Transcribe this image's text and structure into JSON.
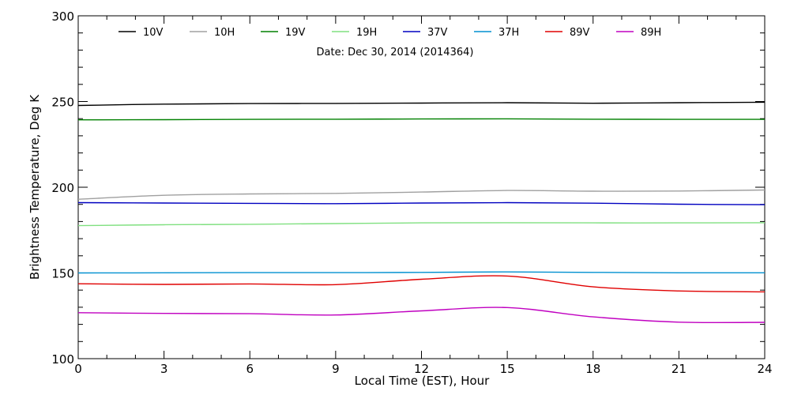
{
  "chart_data": {
    "type": "line",
    "title": "",
    "subtitle": "Date: Dec 30, 2014 (2014364)",
    "xlabel": "Local Time (EST), Hour",
    "ylabel": "Brightness Temperature, Deg K",
    "xlim": [
      0,
      24
    ],
    "ylim": [
      100,
      300
    ],
    "x_ticks": [
      0,
      3,
      6,
      9,
      12,
      15,
      18,
      21,
      24
    ],
    "y_ticks": [
      100,
      150,
      200,
      250,
      300
    ],
    "grid": false,
    "legend_position": "top",
    "series": [
      {
        "name": "10V",
        "color": "#000000",
        "x": [
          0,
          3,
          6,
          9,
          12,
          15,
          18,
          21,
          24
        ],
        "y": [
          247.7,
          248.5,
          248.8,
          248.9,
          249.1,
          249.3,
          249.0,
          249.3,
          249.6
        ]
      },
      {
        "name": "10H",
        "color": "#a0a0a0",
        "x": [
          0,
          3,
          6,
          9,
          12,
          15,
          18,
          21,
          24
        ],
        "y": [
          193.0,
          195.3,
          196.1,
          196.4,
          197.2,
          198.1,
          197.7,
          197.8,
          198.4
        ]
      },
      {
        "name": "19V",
        "color": "#008000",
        "x": [
          0,
          3,
          6,
          9,
          12,
          15,
          18,
          21,
          24
        ],
        "y": [
          239.3,
          239.4,
          239.6,
          239.7,
          239.8,
          239.9,
          239.7,
          239.6,
          239.6
        ]
      },
      {
        "name": "19H",
        "color": "#80e080",
        "x": [
          0,
          3,
          6,
          9,
          12,
          15,
          18,
          21,
          24
        ],
        "y": [
          177.6,
          178.1,
          178.4,
          178.8,
          179.2,
          179.3,
          179.2,
          179.2,
          179.3
        ]
      },
      {
        "name": "37V",
        "color": "#0000c0",
        "x": [
          0,
          3,
          6,
          9,
          12,
          15,
          18,
          21,
          24
        ],
        "y": [
          191.0,
          190.8,
          190.6,
          190.4,
          190.8,
          191.0,
          190.7,
          190.1,
          189.8
        ]
      },
      {
        "name": "37H",
        "color": "#0090d0",
        "x": [
          0,
          3,
          6,
          9,
          12,
          15,
          18,
          21,
          24
        ],
        "y": [
          150.0,
          150.1,
          150.2,
          150.2,
          150.3,
          150.6,
          150.3,
          150.1,
          150.1
        ]
      },
      {
        "name": "89V",
        "color": "#e00000",
        "x": [
          0,
          3,
          6,
          9,
          12,
          15,
          18,
          21,
          24
        ],
        "y": [
          143.7,
          143.3,
          143.6,
          143.2,
          146.3,
          148.2,
          141.9,
          139.5,
          139.0
        ]
      },
      {
        "name": "89H",
        "color": "#c000c0",
        "x": [
          0,
          3,
          6,
          9,
          12,
          15,
          18,
          21,
          24
        ],
        "y": [
          126.8,
          126.4,
          126.2,
          125.5,
          127.9,
          129.8,
          124.4,
          121.3,
          121.2
        ]
      }
    ]
  }
}
